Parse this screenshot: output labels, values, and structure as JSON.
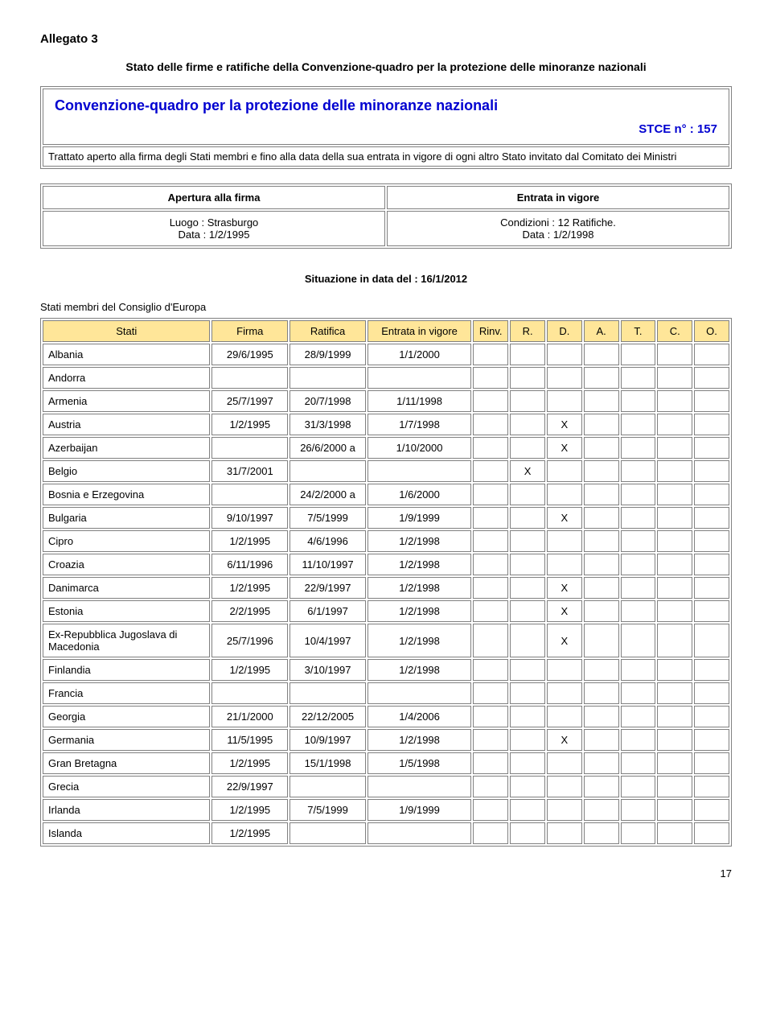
{
  "page_title": "Allegato 3",
  "subtitle": "Stato delle firme e ratifiche della Convenzione-quadro per la protezione delle minoranze nazionali",
  "convention_box": {
    "title": "Convenzione-quadro per la protezione delle minoranze nazionali",
    "stce": "STCE n° : 157",
    "treaty_text": "Trattato aperto alla firma degli Stati membri e fino alla data della sua entrata in vigore di ogni altro Stato invitato dal Comitato dei Ministri"
  },
  "opening_table": {
    "left_header": "Apertura alla firma",
    "right_header": "Entrata in vigore",
    "left_line1": "Luogo : Strasburgo",
    "left_line2": "Data : 1/2/1995",
    "right_line1": "Condizioni : 12 Ratifiche.",
    "right_line2": "Data : 1/2/1998"
  },
  "situazione": "Situazione in data del : 16/1/2012",
  "section_label": "Stati membri del Consiglio d'Europa",
  "headers": {
    "stati": "Stati",
    "firma": "Firma",
    "ratifica": "Ratifica",
    "vigore": "Entrata in vigore",
    "rinv": "Rinv.",
    "r": "R.",
    "d": "D.",
    "a": "A.",
    "t": "T.",
    "c": "C.",
    "o": "O."
  },
  "header_bg": "#ffe699",
  "rows": [
    {
      "stati": "Albania",
      "firma": "29/6/1995",
      "ratifica": "28/9/1999",
      "vigore": "1/1/2000",
      "rinv": "",
      "r": "",
      "d": "",
      "a": "",
      "t": "",
      "c": "",
      "o": ""
    },
    {
      "stati": "Andorra",
      "firma": "",
      "ratifica": "",
      "vigore": "",
      "rinv": "",
      "r": "",
      "d": "",
      "a": "",
      "t": "",
      "c": "",
      "o": ""
    },
    {
      "stati": "Armenia",
      "firma": "25/7/1997",
      "ratifica": "20/7/1998",
      "vigore": "1/11/1998",
      "rinv": "",
      "r": "",
      "d": "",
      "a": "",
      "t": "",
      "c": "",
      "o": ""
    },
    {
      "stati": "Austria",
      "firma": "1/2/1995",
      "ratifica": "31/3/1998",
      "vigore": "1/7/1998",
      "rinv": "",
      "r": "",
      "d": "X",
      "a": "",
      "t": "",
      "c": "",
      "o": ""
    },
    {
      "stati": "Azerbaijan",
      "firma": "",
      "ratifica": "26/6/2000 a",
      "vigore": "1/10/2000",
      "rinv": "",
      "r": "",
      "d": "X",
      "a": "",
      "t": "",
      "c": "",
      "o": ""
    },
    {
      "stati": "Belgio",
      "firma": "31/7/2001",
      "ratifica": "",
      "vigore": "",
      "rinv": "",
      "r": "X",
      "d": "",
      "a": "",
      "t": "",
      "c": "",
      "o": ""
    },
    {
      "stati": "Bosnia e Erzegovina",
      "firma": "",
      "ratifica": "24/2/2000 a",
      "vigore": "1/6/2000",
      "rinv": "",
      "r": "",
      "d": "",
      "a": "",
      "t": "",
      "c": "",
      "o": ""
    },
    {
      "stati": "Bulgaria",
      "firma": "9/10/1997",
      "ratifica": "7/5/1999",
      "vigore": "1/9/1999",
      "rinv": "",
      "r": "",
      "d": "X",
      "a": "",
      "t": "",
      "c": "",
      "o": ""
    },
    {
      "stati": "Cipro",
      "firma": "1/2/1995",
      "ratifica": "4/6/1996",
      "vigore": "1/2/1998",
      "rinv": "",
      "r": "",
      "d": "",
      "a": "",
      "t": "",
      "c": "",
      "o": ""
    },
    {
      "stati": "Croazia",
      "firma": "6/11/1996",
      "ratifica": "11/10/1997",
      "vigore": "1/2/1998",
      "rinv": "",
      "r": "",
      "d": "",
      "a": "",
      "t": "",
      "c": "",
      "o": ""
    },
    {
      "stati": "Danimarca",
      "firma": "1/2/1995",
      "ratifica": "22/9/1997",
      "vigore": "1/2/1998",
      "rinv": "",
      "r": "",
      "d": "X",
      "a": "",
      "t": "",
      "c": "",
      "o": ""
    },
    {
      "stati": "Estonia",
      "firma": "2/2/1995",
      "ratifica": "6/1/1997",
      "vigore": "1/2/1998",
      "rinv": "",
      "r": "",
      "d": "X",
      "a": "",
      "t": "",
      "c": "",
      "o": ""
    },
    {
      "stati": "Ex-Repubblica Jugoslava di Macedonia",
      "firma": "25/7/1996",
      "ratifica": "10/4/1997",
      "vigore": "1/2/1998",
      "rinv": "",
      "r": "",
      "d": "X",
      "a": "",
      "t": "",
      "c": "",
      "o": ""
    },
    {
      "stati": "Finlandia",
      "firma": "1/2/1995",
      "ratifica": "3/10/1997",
      "vigore": "1/2/1998",
      "rinv": "",
      "r": "",
      "d": "",
      "a": "",
      "t": "",
      "c": "",
      "o": ""
    },
    {
      "stati": "Francia",
      "firma": "",
      "ratifica": "",
      "vigore": "",
      "rinv": "",
      "r": "",
      "d": "",
      "a": "",
      "t": "",
      "c": "",
      "o": ""
    },
    {
      "stati": "Georgia",
      "firma": "21/1/2000",
      "ratifica": "22/12/2005",
      "vigore": "1/4/2006",
      "rinv": "",
      "r": "",
      "d": "",
      "a": "",
      "t": "",
      "c": "",
      "o": ""
    },
    {
      "stati": "Germania",
      "firma": "11/5/1995",
      "ratifica": "10/9/1997",
      "vigore": "1/2/1998",
      "rinv": "",
      "r": "",
      "d": "X",
      "a": "",
      "t": "",
      "c": "",
      "o": ""
    },
    {
      "stati": "Gran Bretagna",
      "firma": "1/2/1995",
      "ratifica": "15/1/1998",
      "vigore": "1/5/1998",
      "rinv": "",
      "r": "",
      "d": "",
      "a": "",
      "t": "",
      "c": "",
      "o": ""
    },
    {
      "stati": "Grecia",
      "firma": "22/9/1997",
      "ratifica": "",
      "vigore": "",
      "rinv": "",
      "r": "",
      "d": "",
      "a": "",
      "t": "",
      "c": "",
      "o": ""
    },
    {
      "stati": "Irlanda",
      "firma": "1/2/1995",
      "ratifica": "7/5/1999",
      "vigore": "1/9/1999",
      "rinv": "",
      "r": "",
      "d": "",
      "a": "",
      "t": "",
      "c": "",
      "o": ""
    },
    {
      "stati": "Islanda",
      "firma": "1/2/1995",
      "ratifica": "",
      "vigore": "",
      "rinv": "",
      "r": "",
      "d": "",
      "a": "",
      "t": "",
      "c": "",
      "o": ""
    }
  ],
  "page_number": "17"
}
